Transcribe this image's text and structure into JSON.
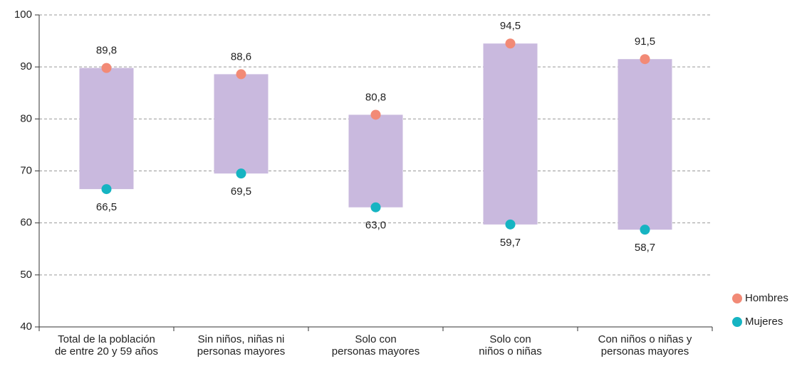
{
  "chart_data": {
    "type": "dumbbell",
    "categories": [
      [
        "Total de la población",
        "de entre 20 y 59 años"
      ],
      [
        "Sin niños, niñas ni",
        "personas mayores"
      ],
      [
        "Solo con",
        "personas mayores"
      ],
      [
        "Solo con",
        "niños o niñas"
      ],
      [
        "Con niños o niñas y",
        "personas mayores"
      ]
    ],
    "series": [
      {
        "name": "Hombres",
        "color": "#f28a76",
        "values": [
          89.8,
          88.6,
          80.8,
          94.5,
          91.5
        ],
        "value_labels": [
          "89,8",
          "88,6",
          "80,8",
          "94,5",
          "91,5"
        ]
      },
      {
        "name": "Mujeres",
        "color": "#16b4c2",
        "values": [
          66.5,
          69.5,
          63.0,
          59.7,
          58.7
        ],
        "value_labels": [
          "66,5",
          "69,5",
          "63,0",
          "59,7",
          "58,7"
        ]
      }
    ],
    "range_color": "#c9b9de",
    "ylim": [
      40,
      100
    ],
    "yticks": [
      40,
      50,
      60,
      70,
      80,
      90,
      100
    ],
    "grid": true,
    "legend": "lower right"
  }
}
